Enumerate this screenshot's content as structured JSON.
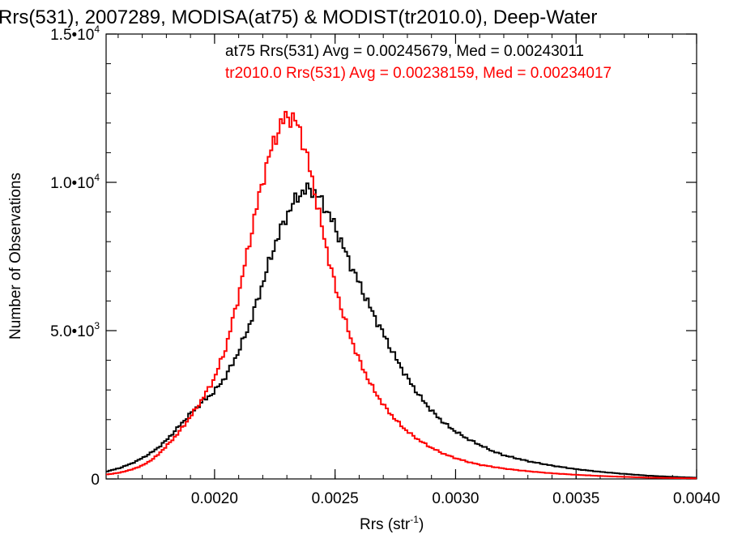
{
  "chart_data": {
    "type": "histogram",
    "title": "Rrs(531), 2007289, MODISA(at75) & MODIST(tr2010.0), Deep-Water",
    "xlabel_main": "Rrs (str",
    "xlabel_sup": "-1",
    "xlabel_close": ")",
    "ylabel": "Number of Observations",
    "xlim": [
      0.00155,
      0.004
    ],
    "ylim": [
      0,
      15000
    ],
    "x_ticks": [
      {
        "value": 0.002,
        "label": "0.0020"
      },
      {
        "value": 0.0025,
        "label": "0.0025"
      },
      {
        "value": 0.003,
        "label": "0.0030"
      },
      {
        "value": 0.0035,
        "label": "0.0035"
      },
      {
        "value": 0.004,
        "label": "0.0040"
      }
    ],
    "y_ticks": [
      {
        "value": 0,
        "base": "0",
        "exp": ""
      },
      {
        "value": 5000,
        "base": "5.0•10",
        "exp": "3"
      },
      {
        "value": 10000,
        "base": "1.0•10",
        "exp": "4"
      },
      {
        "value": 15000,
        "base": "1.5•10",
        "exp": "4"
      }
    ],
    "series": [
      {
        "name": "at75",
        "annotation": "at75 Rrs(531) Avg = 0.00245679, Med = 0.00243011",
        "color": "#000000",
        "points": [
          [
            0.00155,
            250
          ],
          [
            0.0016,
            350
          ],
          [
            0.00165,
            500
          ],
          [
            0.0017,
            700
          ],
          [
            0.00175,
            950
          ],
          [
            0.0018,
            1300
          ],
          [
            0.00185,
            1750
          ],
          [
            0.0019,
            2200
          ],
          [
            0.00195,
            2600
          ],
          [
            0.002,
            2950
          ],
          [
            0.00205,
            3500
          ],
          [
            0.0021,
            4300
          ],
          [
            0.00215,
            5300
          ],
          [
            0.0022,
            6600
          ],
          [
            0.00225,
            7900
          ],
          [
            0.0023,
            8900
          ],
          [
            0.00235,
            9600
          ],
          [
            0.0024,
            9800
          ],
          [
            0.00245,
            9300
          ],
          [
            0.0025,
            8500
          ],
          [
            0.00255,
            7500
          ],
          [
            0.0026,
            6600
          ],
          [
            0.00265,
            5700
          ],
          [
            0.0027,
            4900
          ],
          [
            0.00275,
            4100
          ],
          [
            0.0028,
            3400
          ],
          [
            0.00285,
            2800
          ],
          [
            0.0029,
            2300
          ],
          [
            0.00295,
            1900
          ],
          [
            0.003,
            1600
          ],
          [
            0.00305,
            1350
          ],
          [
            0.0031,
            1150
          ],
          [
            0.00315,
            950
          ],
          [
            0.0032,
            800
          ],
          [
            0.0033,
            600
          ],
          [
            0.0034,
            450
          ],
          [
            0.0035,
            330
          ],
          [
            0.0036,
            240
          ],
          [
            0.0037,
            170
          ],
          [
            0.0038,
            110
          ],
          [
            0.0039,
            70
          ],
          [
            0.004,
            40
          ]
        ]
      },
      {
        "name": "tr2010.0",
        "annotation": "tr2010.0 Rrs(531) Avg = 0.00238159, Med = 0.00234017",
        "color": "#ff0000",
        "points": [
          [
            0.00155,
            150
          ],
          [
            0.0016,
            200
          ],
          [
            0.00165,
            300
          ],
          [
            0.0017,
            450
          ],
          [
            0.00175,
            700
          ],
          [
            0.0018,
            1100
          ],
          [
            0.00185,
            1550
          ],
          [
            0.0019,
            2100
          ],
          [
            0.00195,
            2700
          ],
          [
            0.002,
            3400
          ],
          [
            0.00205,
            4500
          ],
          [
            0.0021,
            6200
          ],
          [
            0.00215,
            8200
          ],
          [
            0.0022,
            10100
          ],
          [
            0.00225,
            11500
          ],
          [
            0.0023,
            12300
          ],
          [
            0.00235,
            11900
          ],
          [
            0.0024,
            10300
          ],
          [
            0.00245,
            8300
          ],
          [
            0.0025,
            6500
          ],
          [
            0.00255,
            5100
          ],
          [
            0.0026,
            4000
          ],
          [
            0.00265,
            3150
          ],
          [
            0.0027,
            2500
          ],
          [
            0.00275,
            2000
          ],
          [
            0.0028,
            1600
          ],
          [
            0.00285,
            1300
          ],
          [
            0.0029,
            1050
          ],
          [
            0.00295,
            850
          ],
          [
            0.003,
            700
          ],
          [
            0.00305,
            580
          ],
          [
            0.0031,
            480
          ],
          [
            0.0032,
            350
          ],
          [
            0.0033,
            260
          ],
          [
            0.0034,
            190
          ],
          [
            0.0035,
            140
          ],
          [
            0.0036,
            100
          ],
          [
            0.0037,
            70
          ],
          [
            0.0038,
            45
          ],
          [
            0.0039,
            30
          ],
          [
            0.004,
            20
          ]
        ]
      }
    ]
  }
}
